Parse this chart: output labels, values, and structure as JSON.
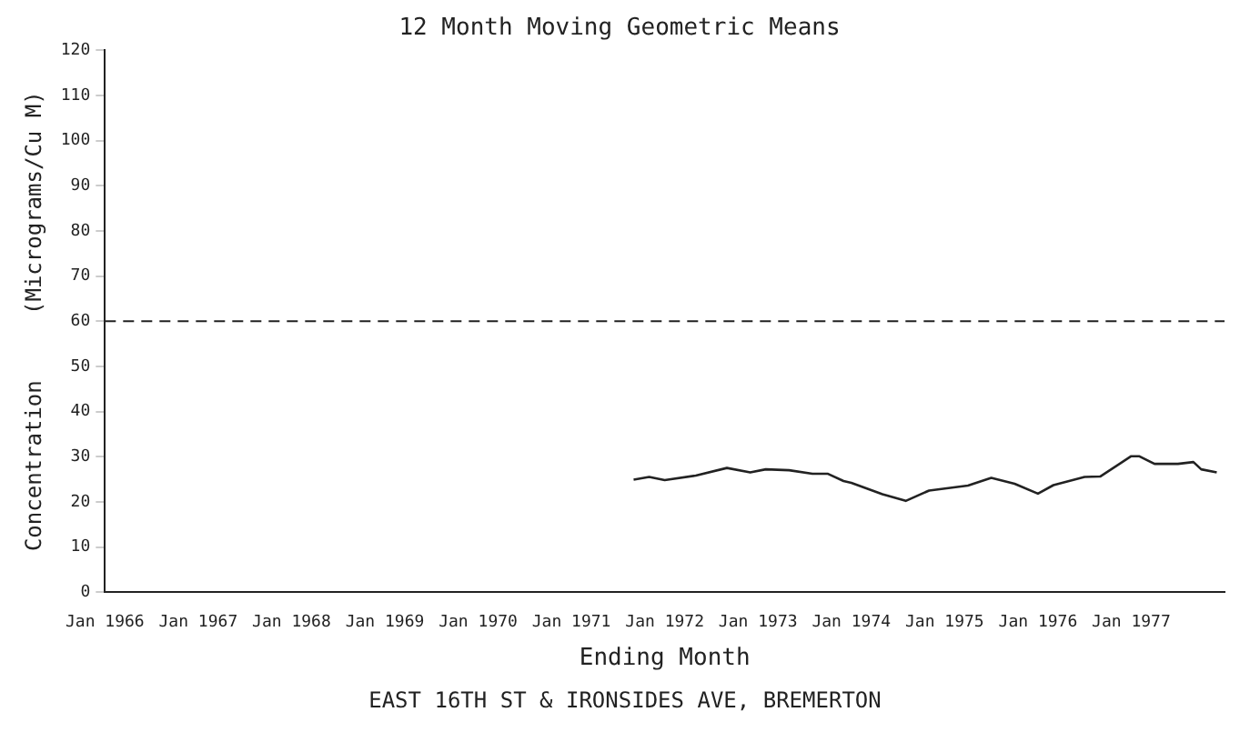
{
  "chart_data": {
    "type": "line",
    "title": "12 Month Moving Geometric Means",
    "xlabel": "Ending Month",
    "ylabel": "Concentration     (Micrograms/Cu M)",
    "annotations": [
      "EAST 16TH ST & IRONSIDES AVE, BREMERTON"
    ],
    "x": [
      "1971-09",
      "1971-11",
      "1972-01",
      "1972-05",
      "1972-09",
      "1972-12",
      "1973-02",
      "1973-05",
      "1973-08",
      "1973-10",
      "1973-12",
      "1974-01",
      "1974-05",
      "1974-08",
      "1974-11",
      "1975-04",
      "1975-07",
      "1975-10",
      "1976-01",
      "1976-03",
      "1976-07",
      "1976-09",
      "1977-01",
      "1977-02",
      "1977-04",
      "1977-07",
      "1977-09",
      "1977-10",
      "1977-12"
    ],
    "series": [
      {
        "color": "#222222",
        "values": [
          24.9,
          25.5,
          24.8,
          25.8,
          27.5,
          26.5,
          27.2,
          27.0,
          26.2,
          26.2,
          24.6,
          24.2,
          21.7,
          20.2,
          22.5,
          23.6,
          25.3,
          24.0,
          21.8,
          23.7,
          25.5,
          25.6,
          30.1,
          30.1,
          28.4,
          28.4,
          28.8,
          27.2,
          26.5
        ]
      }
    ],
    "xlim": [
      "1966-01",
      "1978-01"
    ],
    "xticks": [
      {
        "value": "1966-01",
        "label": "Jan 1966"
      },
      {
        "value": "1967-01",
        "label": "Jan 1967"
      },
      {
        "value": "1968-01",
        "label": "Jan 1968"
      },
      {
        "value": "1969-01",
        "label": "Jan 1969"
      },
      {
        "value": "1970-01",
        "label": "Jan 1970"
      },
      {
        "value": "1971-01",
        "label": "Jan 1971"
      },
      {
        "value": "1972-01",
        "label": "Jan 1972"
      },
      {
        "value": "1973-01",
        "label": "Jan 1973"
      },
      {
        "value": "1974-01",
        "label": "Jan 1974"
      },
      {
        "value": "1975-01",
        "label": "Jan 1975"
      },
      {
        "value": "1976-01",
        "label": "Jan 1976"
      },
      {
        "value": "1977-01",
        "label": "Jan 1977"
      }
    ],
    "ylim": [
      0,
      120
    ],
    "yticks": [
      0,
      10,
      20,
      30,
      40,
      50,
      60,
      70,
      80,
      90,
      100,
      110,
      120
    ],
    "ref_lines": [
      {
        "axis": "y",
        "value": 60,
        "line_style": "dashed",
        "color": "#222222"
      }
    ],
    "grid": false,
    "legend": false,
    "marker": "none",
    "line_style": "solid"
  }
}
